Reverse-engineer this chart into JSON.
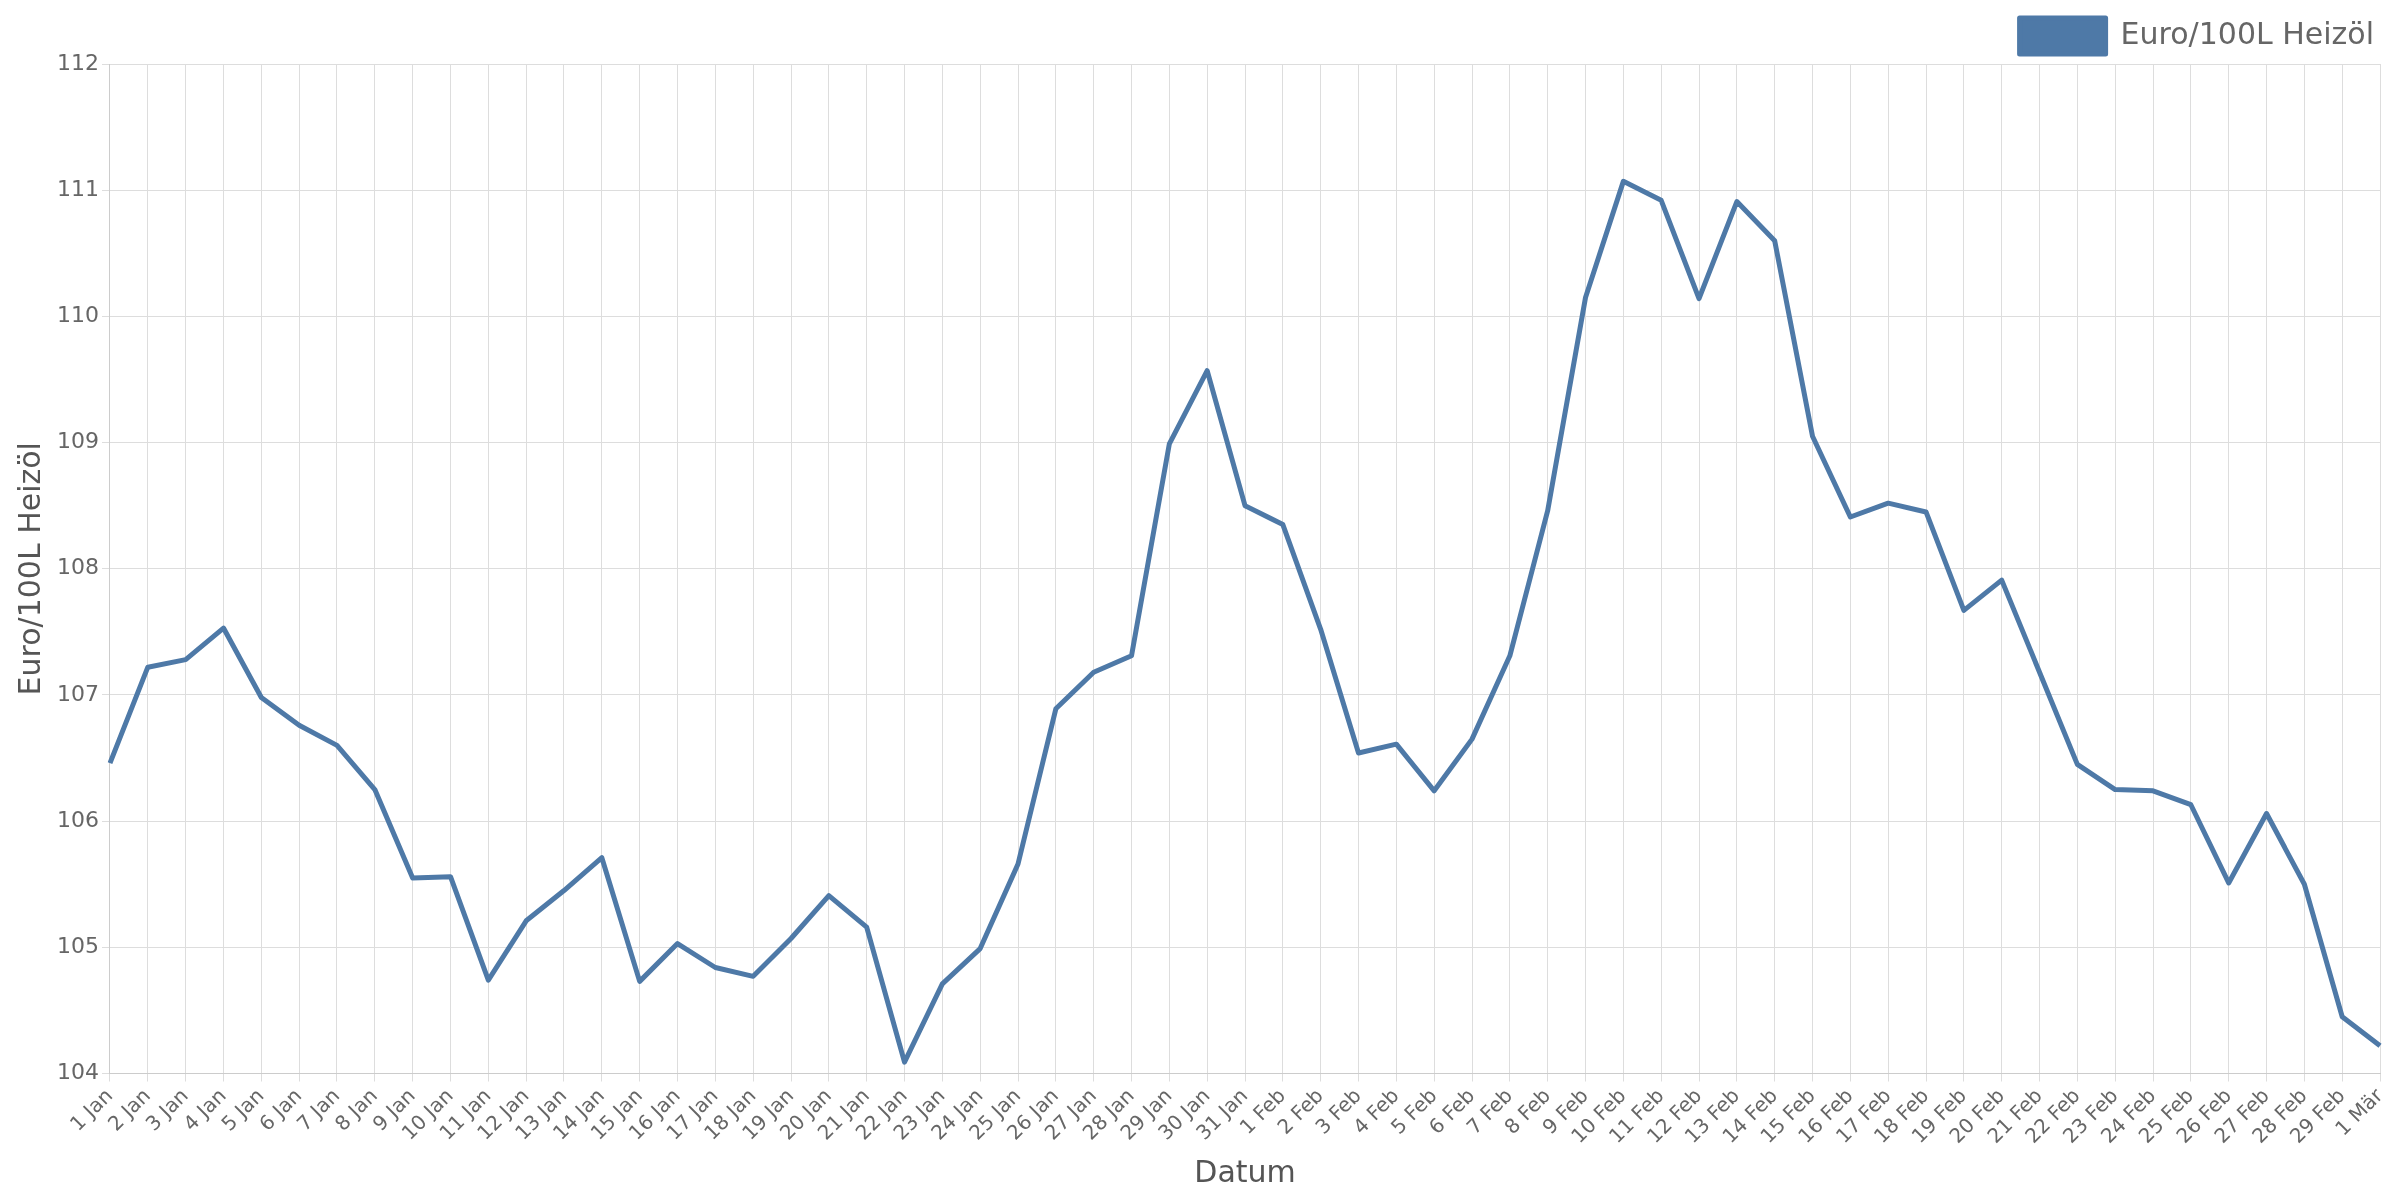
{
  "chart_data": {
    "type": "line",
    "xlabel": "Datum",
    "ylabel": "Euro/100L Heizöl",
    "categories": [
      "1 Jan",
      "2 Jan",
      "3 Jan",
      "4 Jan",
      "5 Jan",
      "6 Jan",
      "7 Jan",
      "8 Jan",
      "9 Jan",
      "10 Jan",
      "11 Jan",
      "12 Jan",
      "13 Jan",
      "14 Jan",
      "15 Jan",
      "16 Jan",
      "17 Jan",
      "18 Jan",
      "19 Jan",
      "20 Jan",
      "21 Jan",
      "22 Jan",
      "23 Jan",
      "24 Jan",
      "25 Jan",
      "26 Jan",
      "27 Jan",
      "28 Jan",
      "29 Jan",
      "30 Jan",
      "31 Jan",
      "1 Feb",
      "2 Feb",
      "3 Feb",
      "4 Feb",
      "5 Feb",
      "6 Feb",
      "7 Feb",
      "8 Feb",
      "9 Feb",
      "10 Feb",
      "11 Feb",
      "12 Feb",
      "13 Feb",
      "14 Feb",
      "15 Feb",
      "16 Feb",
      "17 Feb",
      "18 Feb",
      "19 Feb",
      "20 Feb",
      "21 Feb",
      "22 Feb",
      "23 Feb",
      "24 Feb",
      "25 Feb",
      "26 Feb",
      "27 Feb",
      "28 Feb",
      "29 Feb",
      "1 Mär"
    ],
    "series": [
      {
        "name": "Euro/100L Heizöl",
        "color": "#4e79a7",
        "values": [
          106.46,
          107.22,
          107.28,
          107.53,
          106.98,
          106.76,
          106.6,
          106.25,
          105.55,
          105.56,
          104.74,
          105.21,
          105.45,
          105.71,
          104.73,
          105.03,
          104.84,
          104.77,
          105.07,
          105.41,
          105.16,
          104.09,
          104.71,
          104.99,
          105.66,
          106.89,
          107.18,
          107.31,
          108.99,
          109.57,
          108.5,
          108.35,
          107.52,
          106.54,
          106.61,
          106.24,
          106.65,
          107.31,
          108.46,
          110.15,
          111.07,
          110.92,
          110.14,
          110.91,
          110.6,
          109.05,
          108.41,
          108.52,
          108.45,
          107.67,
          107.91,
          107.18,
          106.45,
          106.25,
          106.24,
          106.13,
          105.51,
          106.06,
          105.5,
          104.45,
          104.22
        ]
      }
    ],
    "ylim": [
      104,
      112
    ],
    "yticks": [
      104,
      105,
      106,
      107,
      108,
      109,
      110,
      111,
      112
    ],
    "grid": true,
    "legend": "top right",
    "marker": "none",
    "line_style": "solid"
  }
}
